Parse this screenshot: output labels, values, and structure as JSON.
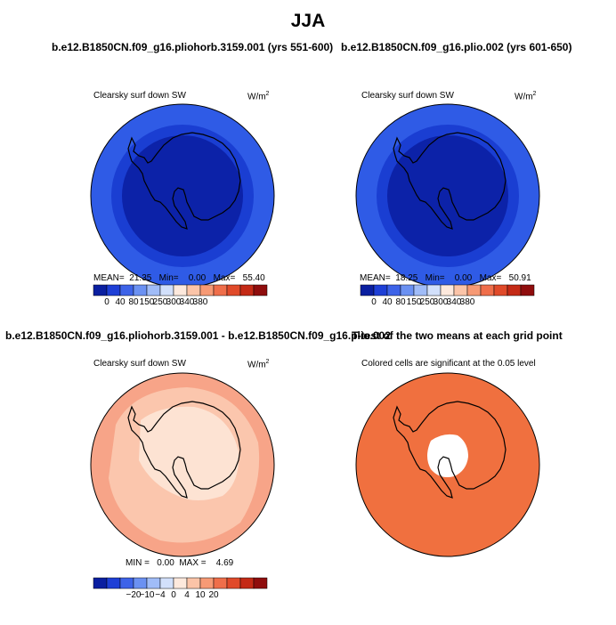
{
  "title": "JJA",
  "panels": [
    {
      "heading": "b.e12.B1850CN.f09_g16.pliohorb.3159.001 (yrs 551-600)",
      "variable": "Clearsky surf down SW",
      "units": "W/m",
      "units_sup": "2",
      "stats": {
        "mean_label": "MEAN=",
        "mean": "21.35",
        "min_label": "Min=",
        "min": "0.00",
        "max_label": "Max=",
        "max": "55.40"
      }
    },
    {
      "heading": "b.e12.B1850CN.f09_g16.plio.002 (yrs 601-650)",
      "variable": "Clearsky surf down SW",
      "units": "W/m",
      "units_sup": "2",
      "stats": {
        "mean_label": "MEAN=",
        "mean": "18.25",
        "min_label": "Min=",
        "min": "0.00",
        "max_label": "Max=",
        "max": "50.91"
      }
    },
    {
      "heading": "b.e12.B1850CN.f09_g16.pliohorb.3159.001 - b.e12.B1850CN.f09_g16.plio.002",
      "variable": "Clearsky surf down SW",
      "units": "W/m",
      "units_sup": "2",
      "stats": {
        "min_label": "MIN =",
        "min": "0.00",
        "max_label": "MAX =",
        "max": "4.69"
      }
    },
    {
      "heading": "T-test of the two means at each grid point",
      "variable": "Colored cells are significant at the 0.05 level"
    }
  ],
  "colorbars": {
    "absolute": {
      "colors": [
        "#0a1fa0",
        "#1e3fd6",
        "#3d63e8",
        "#6b91f2",
        "#a0bcf8",
        "#d2e0fb",
        "#fde9dd",
        "#fbc4a8",
        "#f79a75",
        "#ef6e4a",
        "#e04a2a",
        "#c42a16",
        "#8f0d0d"
      ],
      "labels": [
        "0",
        "40",
        "80",
        "150",
        "250",
        "300",
        "340",
        "380"
      ]
    },
    "difference": {
      "colors": [
        "#0a1fa0",
        "#1e3fd6",
        "#3d63e8",
        "#6b91f2",
        "#a0bcf8",
        "#d2e0fb",
        "#fde9dd",
        "#fbc4a8",
        "#f79a75",
        "#ef6e4a",
        "#e04a2a",
        "#c42a16",
        "#8f0d0d"
      ],
      "labels": [
        "−20",
        "−10",
        "−4",
        "0",
        "4",
        "10",
        "20"
      ]
    }
  },
  "map_colors": {
    "outer_ring": "#2f5be6",
    "middle_ring": "#1a3ed2",
    "inner": "#0c22a8",
    "diff_outer": "#f7a488",
    "diff_mid": "#fbc6ad",
    "diff_inner": "#fde3d3",
    "ttest_fill": "#f0703f",
    "ttest_hole": "#ffffff",
    "coastline": "#000000"
  }
}
